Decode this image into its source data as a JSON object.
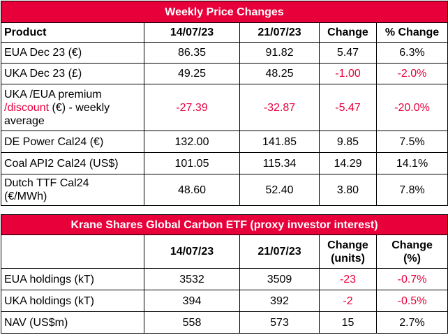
{
  "table1": {
    "title": "Weekly Price Changes",
    "headers": [
      "Product",
      "14/07/23",
      "21/07/23",
      "Change",
      "% Change"
    ],
    "rows": [
      {
        "product": "EUA Dec 23 (€)",
        "d1": "86.35",
        "d2": "91.82",
        "change": "5.47",
        "pct": "6.3%"
      },
      {
        "product": "UKA Dec 23 (£)",
        "d1": "49.25",
        "d2": "48.25",
        "change": "-1.00",
        "pct": "-2.0%"
      },
      {
        "product_a": "UKA /EUA premium",
        "product_b": "/discount",
        "product_c": " (€) - weekly",
        "product_d": "average",
        "d1": "-27.39",
        "d2": "-32.87",
        "change": "-5.47",
        "pct": "-20.0%"
      },
      {
        "product": "DE Power Cal24 (€)",
        "d1": "132.00",
        "d2": "141.85",
        "change": "9.85",
        "pct": "7.5%"
      },
      {
        "product": "Coal API2 Cal24 (US$)",
        "d1": "101.05",
        "d2": "115.34",
        "change": "14.29",
        "pct": "14.1%"
      },
      {
        "product_a": "Dutch TTF Cal24",
        "product_b": "(€/MWh)",
        "d1": "48.60",
        "d2": "52.40",
        "change": "3.80",
        "pct": "7.8%"
      }
    ]
  },
  "table2": {
    "title": "Krane Shares Global Carbon ETF (proxy investor interest)",
    "headers": [
      "",
      "14/07/23",
      "21/07/23",
      "Change",
      "(units)",
      "Change",
      "(%)"
    ],
    "rows": [
      {
        "label": "EUA holdings (kT)",
        "d1": "3532",
        "d2": "3509",
        "change": "-23",
        "pct": "-0.7%"
      },
      {
        "label": "UKA holdings (kT)",
        "d1": "394",
        "d2": "392",
        "change": "-2",
        "pct": "-0.5%"
      },
      {
        "label": "NAV (US$m)",
        "d1": "558",
        "d2": "573",
        "change": "15",
        "pct": "2.7%"
      }
    ]
  },
  "colors": {
    "accent": "#e8003a",
    "negative": "#e8003a"
  }
}
